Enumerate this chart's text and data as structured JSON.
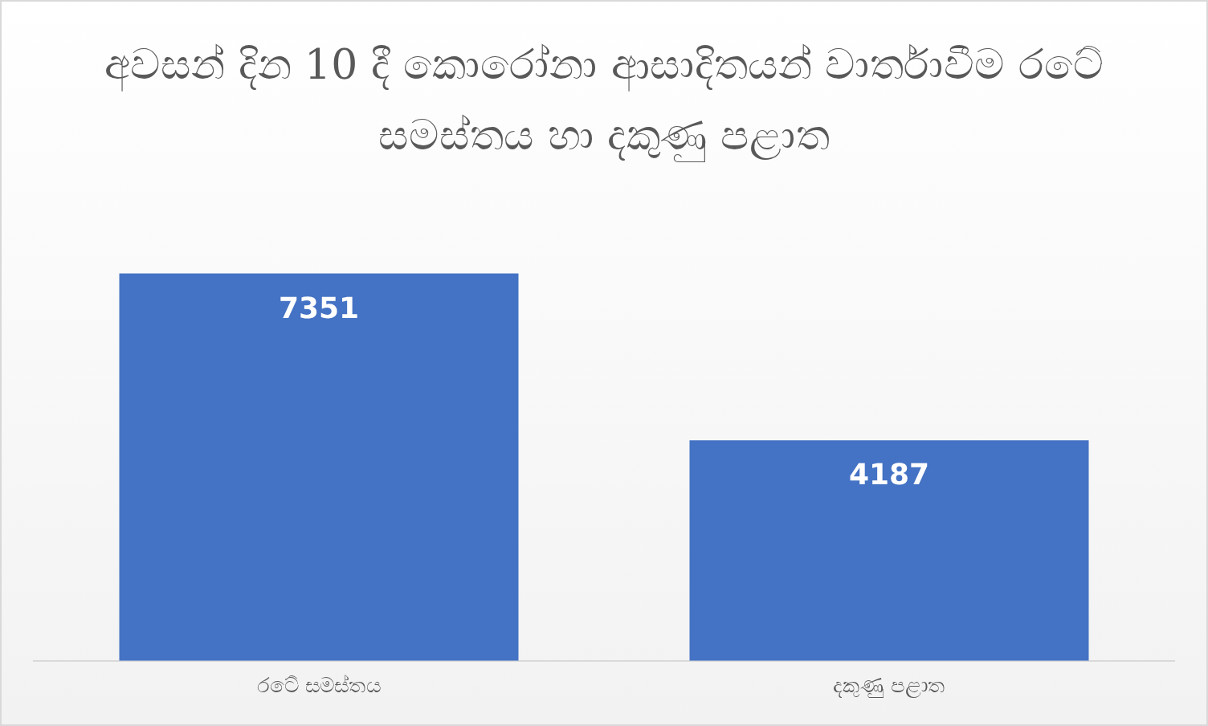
{
  "chart_data": {
    "type": "bar",
    "title": "අවසන් දින 10 දී කොරෝනා ආසාදිතයන් වාර්තාවීම රටේ සමස්තය හා දකුණු පළාත",
    "categories": [
      "රටේ සමස්තය",
      "දකුණු පළාත"
    ],
    "values": [
      7351,
      4187
    ],
    "color": "#4472c4",
    "data_labels": true,
    "grid": false,
    "legend": false
  }
}
